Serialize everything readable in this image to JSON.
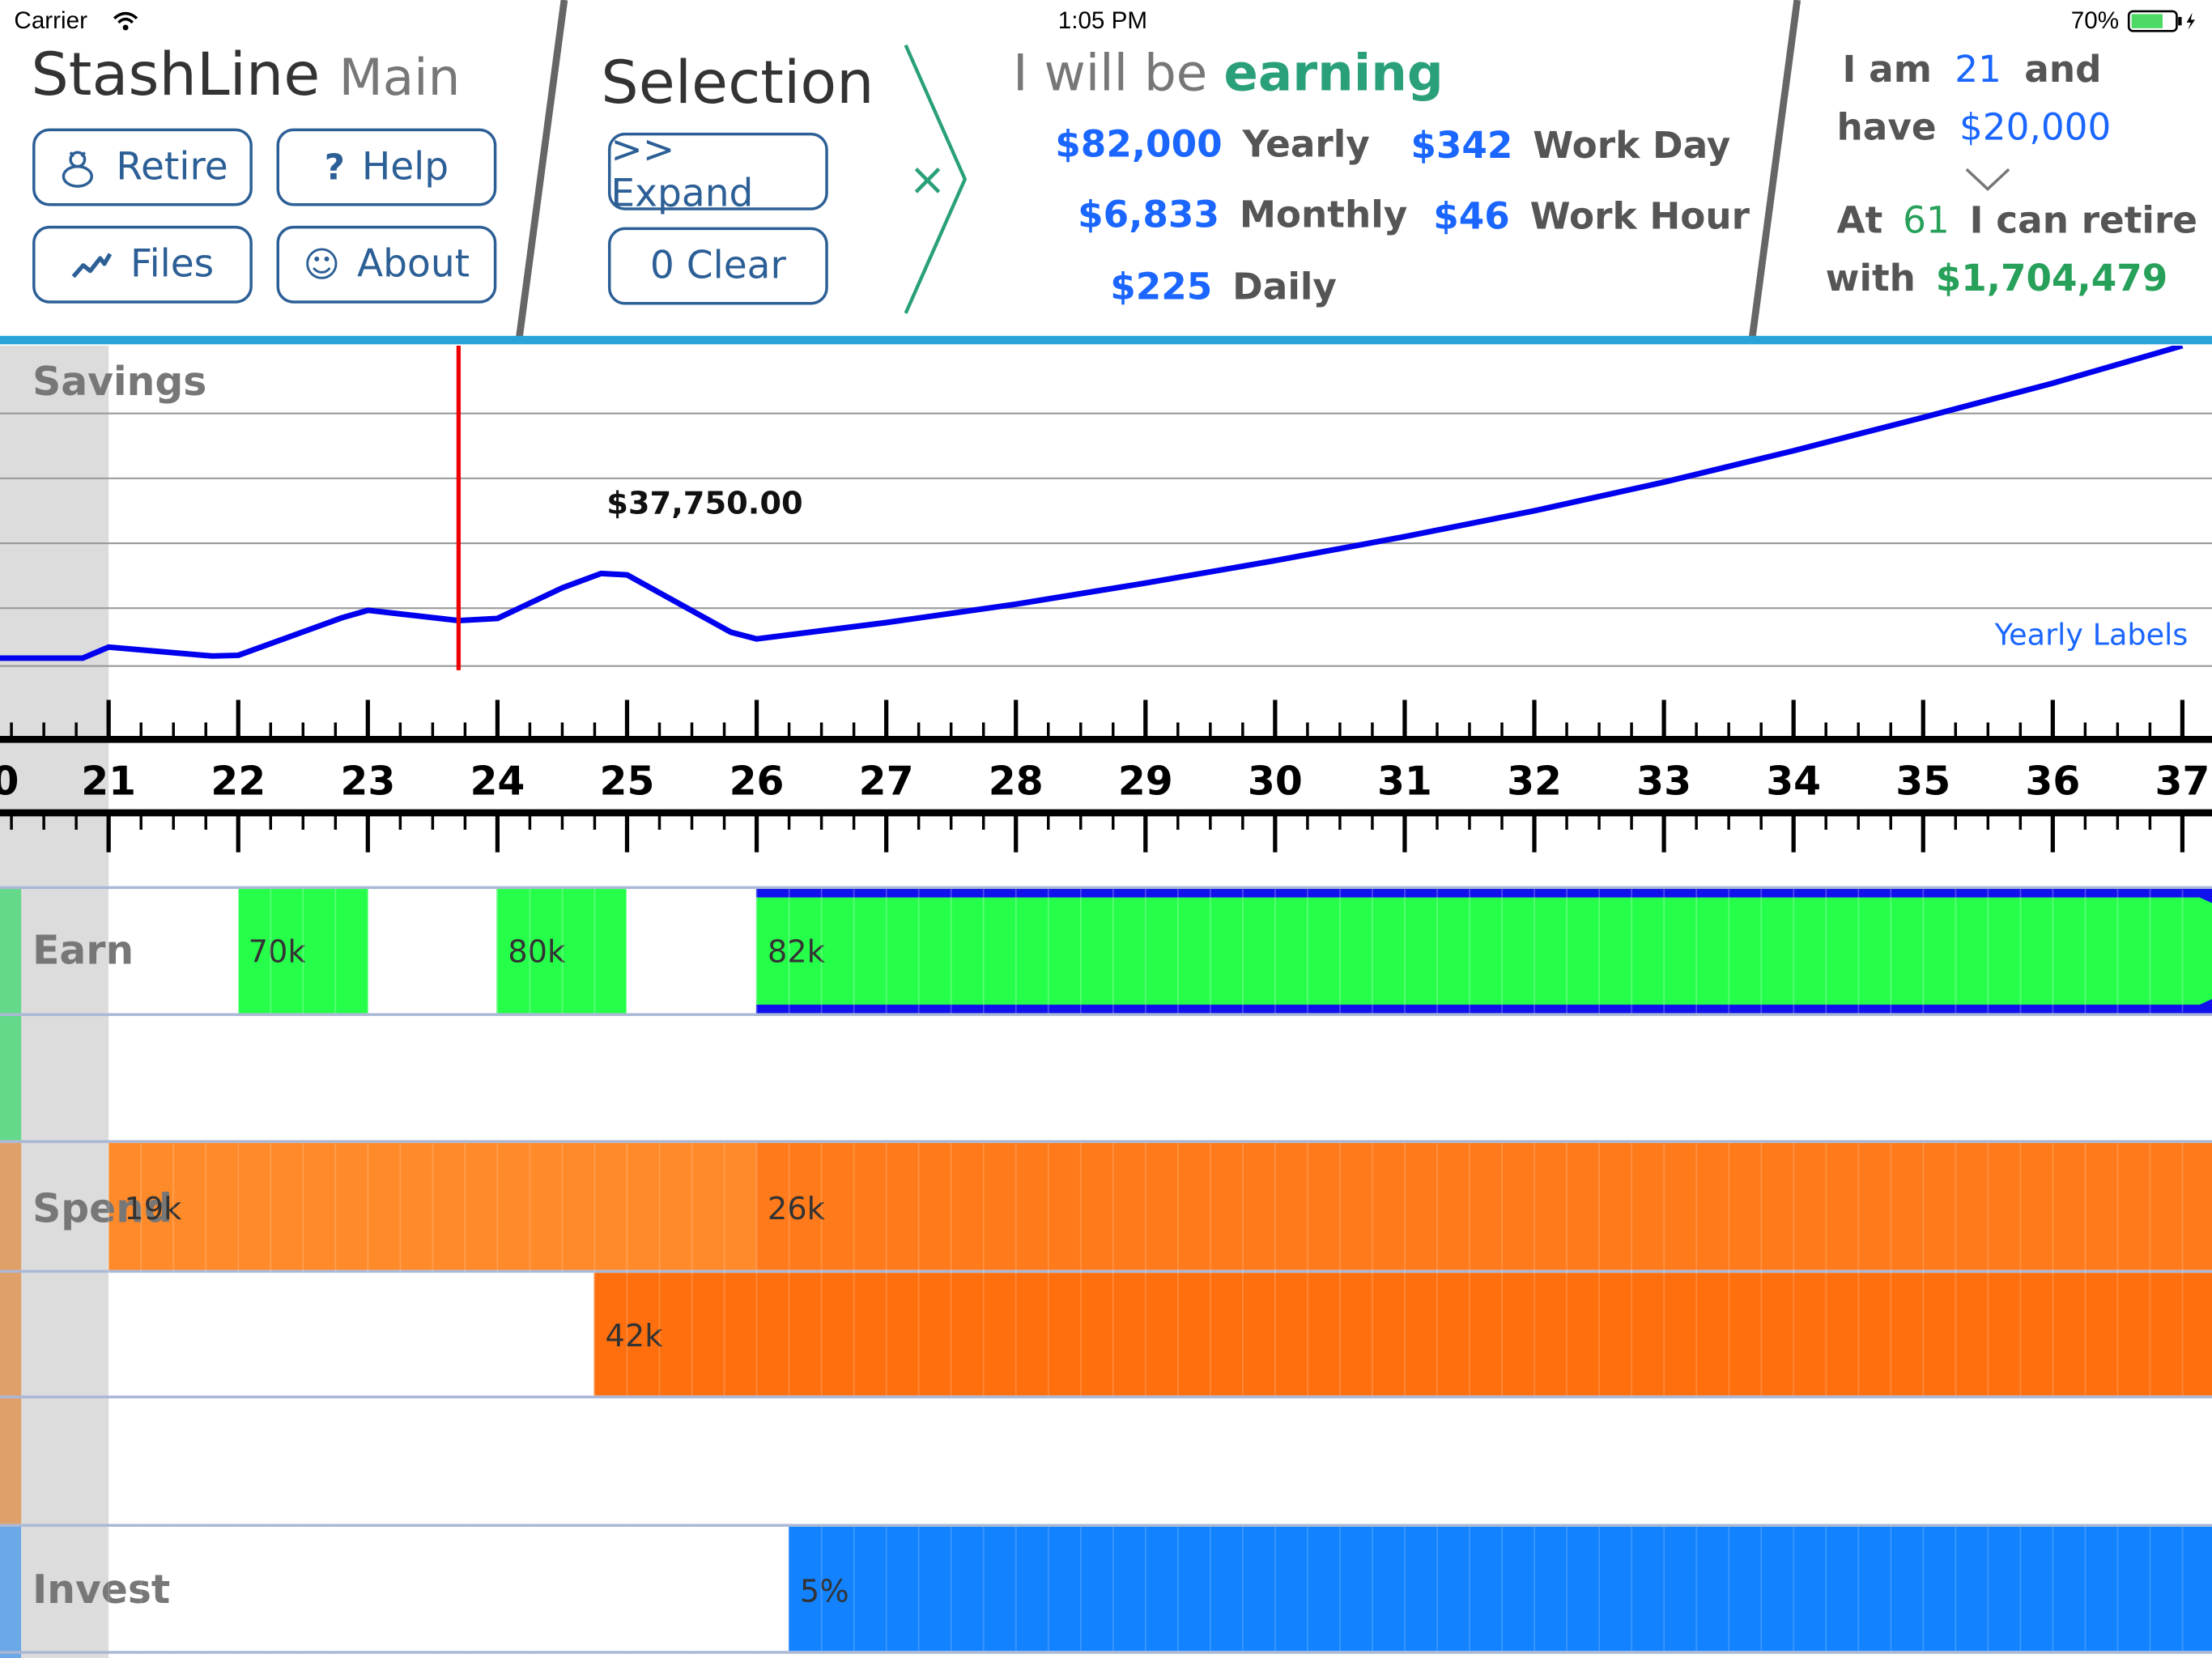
{
  "status": {
    "carrier": "Carrier",
    "time": "1:05 PM",
    "battery": "70%"
  },
  "header": {
    "app_name": "StashLine",
    "app_section": "Main",
    "buttons": [
      {
        "label": "Retire",
        "icon": "piggy-bank-icon"
      },
      {
        "label": "Help",
        "icon": "question-icon"
      },
      {
        "label": "Files",
        "icon": "chart-line-icon"
      },
      {
        "label": "About",
        "icon": "smiley-icon"
      }
    ],
    "icons": {
      "help": "?",
      "about": "☺"
    }
  },
  "selection": {
    "title": "Selection",
    "expand_label": ">> Expand",
    "clear_label": "0 Clear",
    "close_glyph": "×"
  },
  "earning": {
    "prefix": "I will be",
    "mode": "earning",
    "yearly": {
      "value": "$82,000",
      "label": "Yearly"
    },
    "monthly": {
      "value": "$6,833",
      "label": "Monthly"
    },
    "daily": {
      "value": "$225",
      "label": "Daily"
    },
    "work_day": {
      "value": "$342",
      "label": "Work Day"
    },
    "work_hour": {
      "value": "$46",
      "label": "Work Hour"
    }
  },
  "retire_summary": {
    "i_am": "I am",
    "age": "21",
    "and": "and",
    "have": "have",
    "savings": "$20,000",
    "at": "At",
    "retire_age": "61",
    "can_retire": "I can retire",
    "with": "with",
    "retire_amount": "$1,704,479"
  },
  "timeline": {
    "savings_label": "Savings",
    "marker_value": "$37,750.00",
    "yearly_labels_link": "Yearly Labels",
    "ages": [
      "21",
      "22",
      "23",
      "24",
      "25",
      "26",
      "27",
      "28",
      "29",
      "30",
      "31",
      "32",
      "33",
      "34",
      "35",
      "36",
      "37"
    ],
    "left_partial": "0"
  },
  "rows": {
    "earn": {
      "label": "Earn",
      "bars": [
        "70k",
        "80k",
        "82k"
      ]
    },
    "spend": {
      "label": "Spend",
      "bars": [
        "19k",
        "26k",
        "42k"
      ]
    },
    "invest": {
      "label": "Invest",
      "bars": [
        "5%"
      ]
    }
  },
  "chart_data": {
    "type": "line",
    "x": [
      20.3,
      20.8,
      21.0,
      21.8,
      22.0,
      22.8,
      23.0,
      23.7,
      24.0,
      24.5,
      24.8,
      25.0,
      25.8,
      26.0,
      27,
      28,
      29,
      30,
      31,
      32,
      33,
      34,
      35,
      36,
      37
    ],
    "y": [
      2.2,
      2.2,
      3.8,
      2.5,
      2.6,
      8.1,
      9.2,
      7.7,
      8.0,
      12.5,
      14.6,
      14.4,
      6.0,
      5.0,
      7.4,
      10.1,
      13.2,
      16.5,
      20.0,
      23.8,
      28.0,
      32.6,
      37.5,
      42.5,
      48.0
    ],
    "marker_x": 23.7,
    "color": "#0000ee",
    "marker_color": "#ee0000"
  }
}
